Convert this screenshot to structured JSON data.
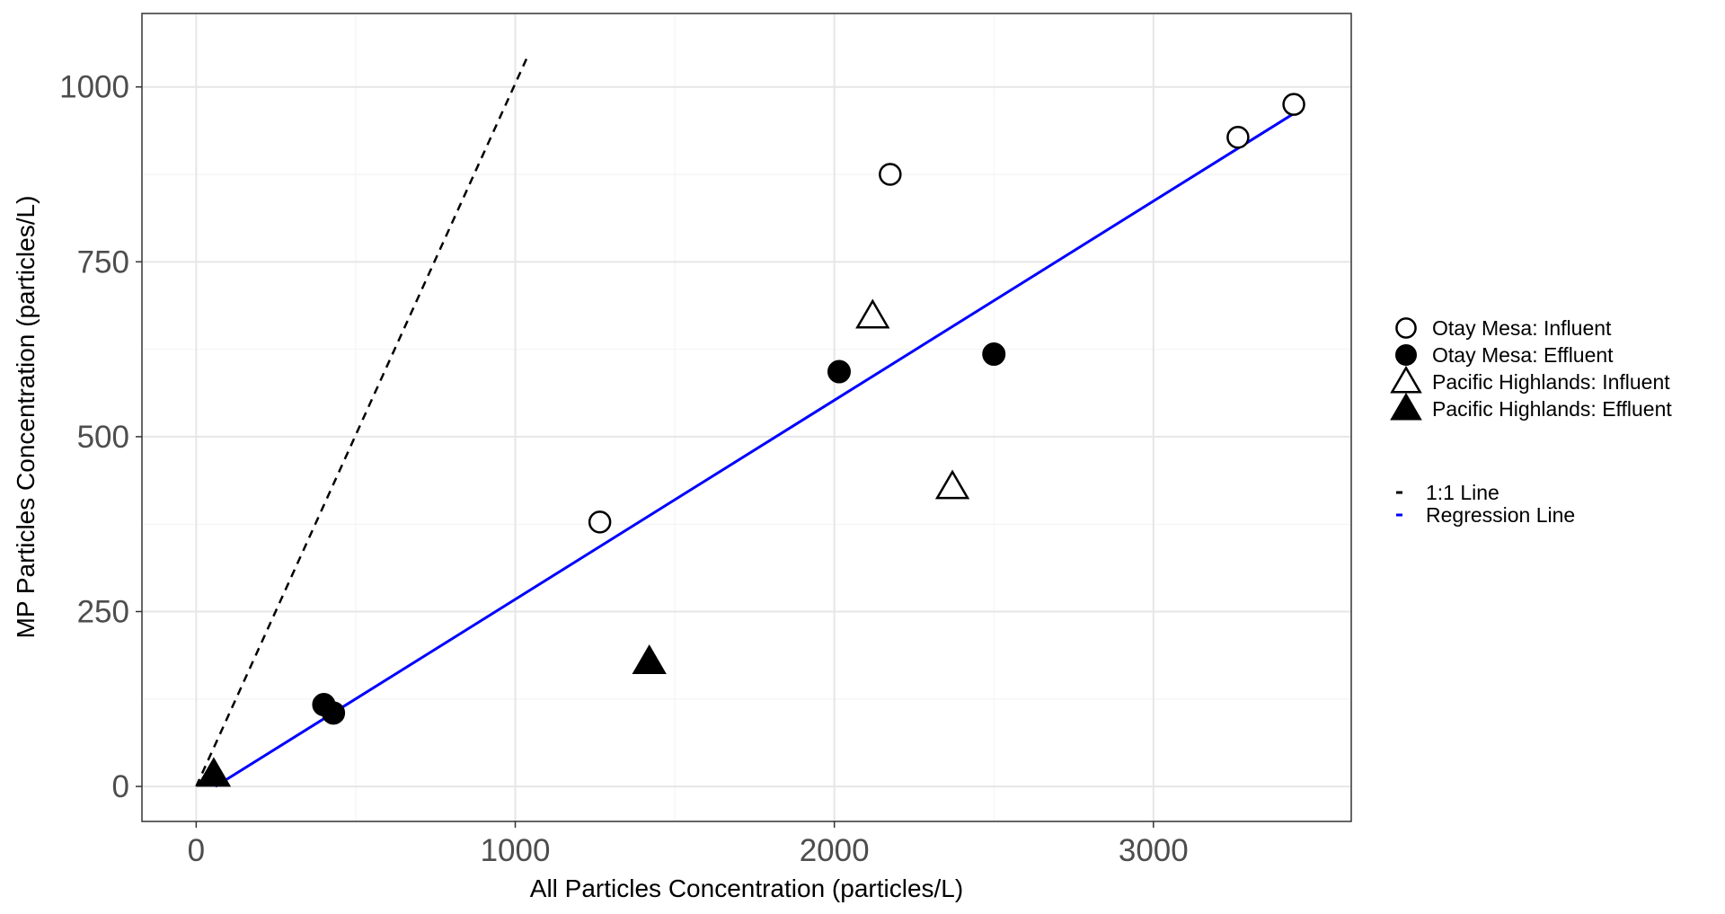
{
  "chart_data": {
    "type": "scatter",
    "xlabel": "All Particles Concentration (particles/L)",
    "ylabel": "MP Particles Concentration (particles/L)",
    "xlim": [
      -170,
      3620
    ],
    "ylim": [
      -50,
      1105
    ],
    "x_ticks": [
      0,
      1000,
      2000,
      3000
    ],
    "y_ticks": [
      0,
      250,
      500,
      750,
      1000
    ],
    "x_tick_labels": [
      "0",
      "1000",
      "2000",
      "3000"
    ],
    "y_tick_labels": [
      "0",
      "250",
      "500",
      "750",
      "1000"
    ],
    "grid": true,
    "legend_position": "right",
    "series": [
      {
        "name": "Otay Mesa: Influent",
        "shape": "circle-open",
        "points": [
          [
            1265,
            378
          ],
          [
            2175,
            875
          ],
          [
            3265,
            928
          ],
          [
            3440,
            975
          ]
        ]
      },
      {
        "name": "Otay Mesa: Effluent",
        "shape": "circle-filled",
        "points": [
          [
            400,
            117
          ],
          [
            430,
            105
          ],
          [
            2015,
            593
          ],
          [
            2500,
            618
          ]
        ]
      },
      {
        "name": "Pacific Highlands: Influent",
        "shape": "triangle-open",
        "points": [
          [
            2120,
            672
          ],
          [
            2370,
            428
          ]
        ]
      },
      {
        "name": "Pacific Highlands: Effluent",
        "shape": "triangle-filled",
        "points": [
          [
            55,
            17
          ],
          [
            1420,
            178
          ]
        ]
      }
    ],
    "lines": [
      {
        "name": "1:1 Line",
        "style": "dashed",
        "color": "#000000",
        "points": [
          [
            0,
            0
          ],
          [
            1035,
            1040
          ]
        ]
      },
      {
        "name": "Regression Line",
        "style": "solid",
        "color": "#0000ff",
        "points": [
          [
            60,
            0
          ],
          [
            3440,
            962
          ]
        ]
      }
    ]
  }
}
